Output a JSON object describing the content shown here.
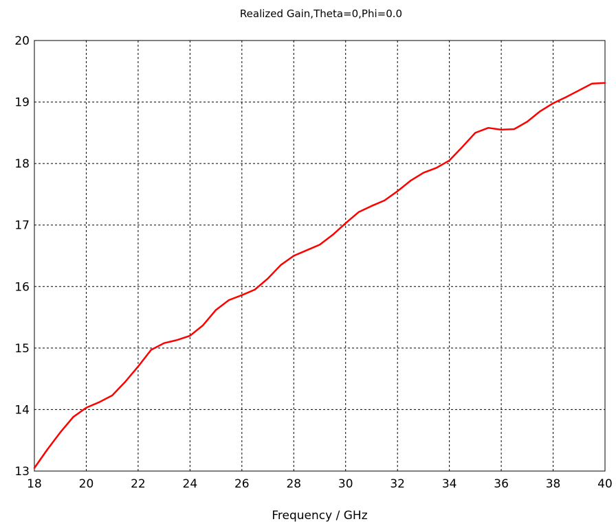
{
  "chart_data": {
    "type": "line",
    "title": "Realized Gain,Theta=0,Phi=0.0",
    "xlabel": "Frequency / GHz",
    "ylabel": "",
    "xlim": [
      18,
      40
    ],
    "ylim": [
      13,
      20
    ],
    "x_ticks": [
      "18",
      "20",
      "22",
      "24",
      "26",
      "28",
      "30",
      "32",
      "34",
      "36",
      "38",
      "40"
    ],
    "y_ticks": [
      "13",
      "14",
      "15",
      "16",
      "17",
      "18",
      "19",
      "20"
    ],
    "grid": true,
    "legend": "none",
    "series": [
      {
        "color": "#ff0000",
        "x": [
          18,
          18.5,
          19,
          19.5,
          20,
          20.5,
          21,
          21.5,
          22,
          22.5,
          23,
          23.5,
          24,
          24.5,
          25,
          25.5,
          26,
          26.5,
          27,
          27.5,
          28,
          28.5,
          29,
          29.5,
          30,
          30.5,
          31,
          31.5,
          32,
          32.5,
          33,
          33.5,
          34,
          34.5,
          35,
          35.5,
          36,
          36.5,
          37,
          37.5,
          38,
          38.5,
          39,
          39.5,
          40
        ],
        "y": [
          13.05,
          13.35,
          13.63,
          13.88,
          14.03,
          14.12,
          14.23,
          14.45,
          14.7,
          14.97,
          15.08,
          15.13,
          15.2,
          15.37,
          15.62,
          15.78,
          15.86,
          15.95,
          16.13,
          16.35,
          16.5,
          16.59,
          16.68,
          16.84,
          17.03,
          17.21,
          17.31,
          17.4,
          17.55,
          17.72,
          17.85,
          17.93,
          18.05,
          18.27,
          18.5,
          18.58,
          18.55,
          18.56,
          18.68,
          18.85,
          18.98,
          19.08,
          19.19,
          19.3,
          19.31
        ]
      }
    ]
  }
}
